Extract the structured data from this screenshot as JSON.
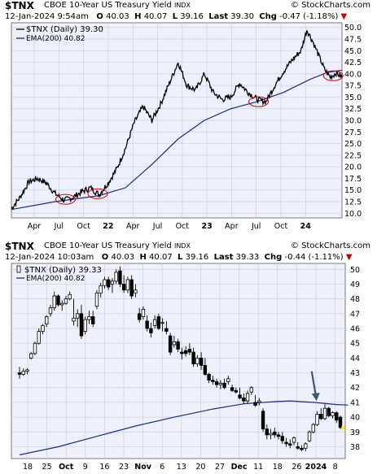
{
  "brand": "© StockCharts.com",
  "chart_data": [
    {
      "type": "candlestick-line",
      "symbol": "$TNX",
      "name": "CBOE 10-Year US Treasury Yield",
      "exchange": "INDX",
      "date": "12-Jan-2024 9:54am",
      "open_label": "O",
      "open": "40.03",
      "high_label": "H",
      "high": "40.07",
      "low_label": "L",
      "low": "39.16",
      "last_label": "Last",
      "last": "39.30",
      "chg_label": "Chg",
      "chg": "-0.47 (-1.18%)",
      "legend": [
        {
          "name": "$TNX (Daily) 39.30",
          "color": "#000000"
        },
        {
          "name": "EMA(200) 40.82",
          "color": "#1a2b8c"
        }
      ],
      "ylim": [
        9,
        51
      ],
      "y_ticks": [
        "10.0",
        "12.5",
        "15.0",
        "17.5",
        "20.0",
        "22.5",
        "25.0",
        "27.5",
        "30.0",
        "32.5",
        "35.0",
        "37.5",
        "40.0",
        "42.5",
        "45.0",
        "47.5",
        "50.0"
      ],
      "x_ticks": [
        "Apr",
        "Jul",
        "Oct",
        "22",
        "Apr",
        "Jul",
        "Oct",
        "23",
        "Apr",
        "Jul",
        "Oct",
        "24"
      ],
      "price_path": [
        [
          0,
          11
        ],
        [
          6,
          13.5
        ],
        [
          12,
          16.8
        ],
        [
          18,
          17.5
        ],
        [
          24,
          16.5
        ],
        [
          30,
          14.2
        ],
        [
          36,
          12.8
        ],
        [
          42,
          13.4
        ],
        [
          48,
          14.6
        ],
        [
          54,
          15.5
        ],
        [
          60,
          14.0
        ],
        [
          66,
          16.5
        ],
        [
          72,
          19.5
        ],
        [
          78,
          24.0
        ],
        [
          84,
          29.5
        ],
        [
          90,
          33.0
        ],
        [
          96,
          30.0
        ],
        [
          102,
          33.5
        ],
        [
          108,
          38.0
        ],
        [
          114,
          42.5
        ],
        [
          120,
          37.5
        ],
        [
          126,
          36.5
        ],
        [
          132,
          40.0
        ],
        [
          138,
          36.0
        ],
        [
          144,
          34.5
        ],
        [
          150,
          35.0
        ],
        [
          156,
          38.0
        ],
        [
          162,
          36.0
        ],
        [
          168,
          34.5
        ],
        [
          174,
          34.0
        ],
        [
          180,
          37.5
        ],
        [
          186,
          40.5
        ],
        [
          192,
          43.0
        ],
        [
          198,
          45.0
        ],
        [
          202,
          49.5
        ],
        [
          206,
          47.0
        ],
        [
          210,
          44.0
        ],
        [
          214,
          41.0
        ],
        [
          218,
          39.3
        ],
        [
          222,
          40.2
        ],
        [
          226,
          39.3
        ]
      ],
      "ema_path": [
        [
          0,
          10.8
        ],
        [
          30,
          12.5
        ],
        [
          60,
          13.8
        ],
        [
          78,
          15.5
        ],
        [
          96,
          20.5
        ],
        [
          114,
          26.0
        ],
        [
          132,
          30.0
        ],
        [
          150,
          32.5
        ],
        [
          168,
          34.0
        ],
        [
          186,
          36.0
        ],
        [
          204,
          38.8
        ],
        [
          216,
          40.3
        ],
        [
          226,
          40.8
        ]
      ],
      "highlight_ellipses": [
        {
          "x": 37,
          "y": 13.0
        },
        {
          "x": 59,
          "y": 14.2
        },
        {
          "x": 169,
          "y": 34.0
        },
        {
          "x": 220,
          "y": 39.6
        }
      ]
    },
    {
      "type": "candlestick",
      "symbol": "$TNX",
      "name": "CBOE 10-Year US Treasury Yield",
      "exchange": "INDX",
      "date": "12-Jan-2024 10:03am",
      "open_label": "O",
      "open": "40.03",
      "high_label": "H",
      "high": "40.07",
      "low_label": "L",
      "low": "39.16",
      "last_label": "Last",
      "last": "39.33",
      "chg_label": "Chg",
      "chg": "-0.44 (-1.11%)",
      "legend": [
        {
          "name": "$TNX (Daily) 39.33",
          "color": "#000000"
        },
        {
          "name": "EMA(200) 40.82",
          "color": "#1a2b8c"
        }
      ],
      "ylim": [
        37.2,
        50.4
      ],
      "y_ticks": [
        "38",
        "39",
        "40",
        "41",
        "42",
        "43",
        "44",
        "45",
        "46",
        "47",
        "48",
        "49",
        "50"
      ],
      "x_ticks": [
        "18",
        "25",
        "Oct",
        "9",
        "16",
        "23",
        "Nov",
        "6",
        "13",
        "20",
        "27",
        "Dec",
        "11",
        "18",
        "26",
        "2024",
        "8"
      ],
      "candles": [
        [
          43.0,
          43.4,
          42.6,
          42.9
        ],
        [
          42.9,
          43.3,
          42.8,
          43.1
        ],
        [
          43.1,
          43.3,
          42.9,
          43.2
        ],
        [
          44.0,
          44.4,
          43.9,
          44.3
        ],
        [
          44.3,
          45.1,
          44.2,
          45.0
        ],
        [
          45.0,
          46.0,
          44.9,
          45.8
        ],
        [
          45.8,
          46.3,
          45.6,
          46.2
        ],
        [
          46.3,
          46.9,
          46.1,
          46.8
        ],
        [
          47.0,
          47.6,
          46.8,
          47.4
        ],
        [
          47.4,
          48.5,
          47.2,
          48.2
        ],
        [
          48.2,
          48.3,
          47.5,
          47.6
        ],
        [
          47.6,
          47.9,
          47.2,
          47.7
        ],
        [
          47.7,
          48.2,
          47.6,
          48.0
        ],
        [
          48.0,
          48.5,
          47.9,
          48.3
        ],
        [
          46.5,
          48.0,
          46.2,
          46.7
        ],
        [
          46.7,
          47.3,
          46.1,
          47.0
        ],
        [
          47.0,
          47.6,
          45.3,
          45.5
        ],
        [
          45.8,
          46.8,
          45.6,
          46.6
        ],
        [
          46.6,
          47.2,
          46.3,
          46.8
        ],
        [
          46.8,
          47.2,
          46.1,
          46.3
        ],
        [
          47.5,
          48.6,
          47.3,
          48.4
        ],
        [
          48.4,
          49.1,
          48.1,
          48.9
        ],
        [
          48.9,
          49.5,
          48.7,
          49.3
        ],
        [
          49.3,
          49.5,
          48.6,
          48.8
        ],
        [
          49.0,
          49.4,
          48.4,
          49.2
        ],
        [
          49.2,
          50.0,
          49.0,
          49.8
        ],
        [
          49.9,
          50.2,
          48.8,
          49.0
        ],
        [
          49.0,
          49.6,
          48.4,
          48.6
        ],
        [
          48.6,
          49.5,
          48.4,
          49.3
        ],
        [
          49.3,
          49.6,
          48.0,
          48.2
        ],
        [
          48.4,
          49.0,
          48.1,
          48.6
        ],
        [
          47.0,
          47.4,
          46.4,
          46.6
        ],
        [
          46.8,
          47.5,
          46.6,
          47.3
        ],
        [
          46.5,
          46.9,
          45.8,
          46.0
        ],
        [
          46.0,
          46.4,
          45.4,
          45.7
        ],
        [
          46.2,
          46.9,
          46.0,
          46.6
        ],
        [
          46.8,
          47.0,
          45.9,
          46.0
        ],
        [
          46.4,
          46.7,
          45.8,
          46.4
        ],
        [
          46.0,
          46.5,
          45.6,
          45.8
        ],
        [
          45.5,
          45.7,
          44.2,
          44.4
        ],
        [
          44.9,
          45.5,
          44.7,
          45.1
        ],
        [
          45.1,
          45.3,
          44.4,
          44.6
        ],
        [
          44.4,
          44.7,
          43.9,
          44.3
        ],
        [
          44.5,
          44.8,
          44.1,
          44.3
        ],
        [
          44.6,
          45.0,
          44.2,
          44.4
        ],
        [
          44.4,
          44.7,
          43.4,
          43.6
        ],
        [
          43.6,
          44.2,
          43.4,
          44.0
        ],
        [
          44.0,
          44.4,
          43.2,
          43.5
        ],
        [
          43.5,
          44.0,
          42.8,
          42.9
        ],
        [
          42.9,
          43.0,
          42.3,
          42.5
        ],
        [
          42.5,
          42.8,
          42.2,
          42.4
        ],
        [
          42.4,
          42.6,
          42.0,
          42.2
        ],
        [
          42.2,
          42.5,
          41.9,
          42.3
        ],
        [
          42.3,
          42.6,
          41.9,
          42.0
        ],
        [
          42.4,
          42.8,
          42.2,
          42.6
        ],
        [
          42.0,
          42.2,
          41.7,
          41.8
        ],
        [
          41.8,
          42.0,
          41.6,
          41.7
        ],
        [
          41.5,
          42.0,
          41.2,
          41.3
        ],
        [
          41.3,
          41.6,
          40.9,
          41.1
        ],
        [
          41.1,
          41.8,
          40.9,
          41.6
        ],
        [
          41.7,
          42.1,
          41.5,
          42.0
        ],
        [
          41.0,
          41.5,
          40.7,
          40.8
        ],
        [
          41.0,
          41.3,
          40.8,
          41.1
        ],
        [
          40.4,
          40.6,
          39.0,
          39.2
        ],
        [
          39.2,
          39.5,
          38.5,
          38.8
        ],
        [
          38.8,
          39.2,
          38.5,
          38.9
        ],
        [
          39.0,
          39.3,
          38.6,
          38.8
        ],
        [
          38.8,
          39.0,
          38.5,
          38.7
        ],
        [
          38.7,
          39.0,
          38.2,
          38.4
        ],
        [
          38.3,
          38.6,
          38.0,
          38.2
        ],
        [
          38.2,
          38.5,
          37.9,
          38.1
        ],
        [
          38.3,
          38.7,
          38.1,
          38.6
        ],
        [
          38.0,
          38.3,
          37.8,
          37.9
        ],
        [
          37.9,
          38.1,
          37.7,
          37.8
        ],
        [
          37.9,
          38.3,
          37.7,
          38.2
        ],
        [
          38.4,
          39.1,
          38.3,
          39.0
        ],
        [
          39.0,
          39.6,
          38.9,
          39.5
        ],
        [
          39.5,
          40.4,
          39.4,
          40.2
        ],
        [
          40.2,
          40.6,
          39.8,
          39.9
        ],
        [
          39.9,
          40.9,
          39.8,
          40.6
        ],
        [
          40.6,
          40.7,
          40.0,
          40.1
        ],
        [
          40.1,
          40.4,
          39.9,
          40.3
        ],
        [
          40.3,
          40.4,
          39.6,
          39.8
        ],
        [
          40.0,
          40.1,
          39.2,
          39.3
        ]
      ],
      "ema_path": [
        [
          0,
          37.45
        ],
        [
          10,
          38.0
        ],
        [
          20,
          38.7
        ],
        [
          30,
          39.4
        ],
        [
          40,
          40.0
        ],
        [
          50,
          40.55
        ],
        [
          58,
          40.9
        ],
        [
          66,
          41.05
        ],
        [
          70,
          41.1
        ],
        [
          76,
          41.0
        ],
        [
          82,
          40.85
        ],
        [
          85,
          40.82
        ]
      ],
      "arrow": {
        "x": 76,
        "y_from": 43.1,
        "y_to": 41.15
      }
    }
  ]
}
